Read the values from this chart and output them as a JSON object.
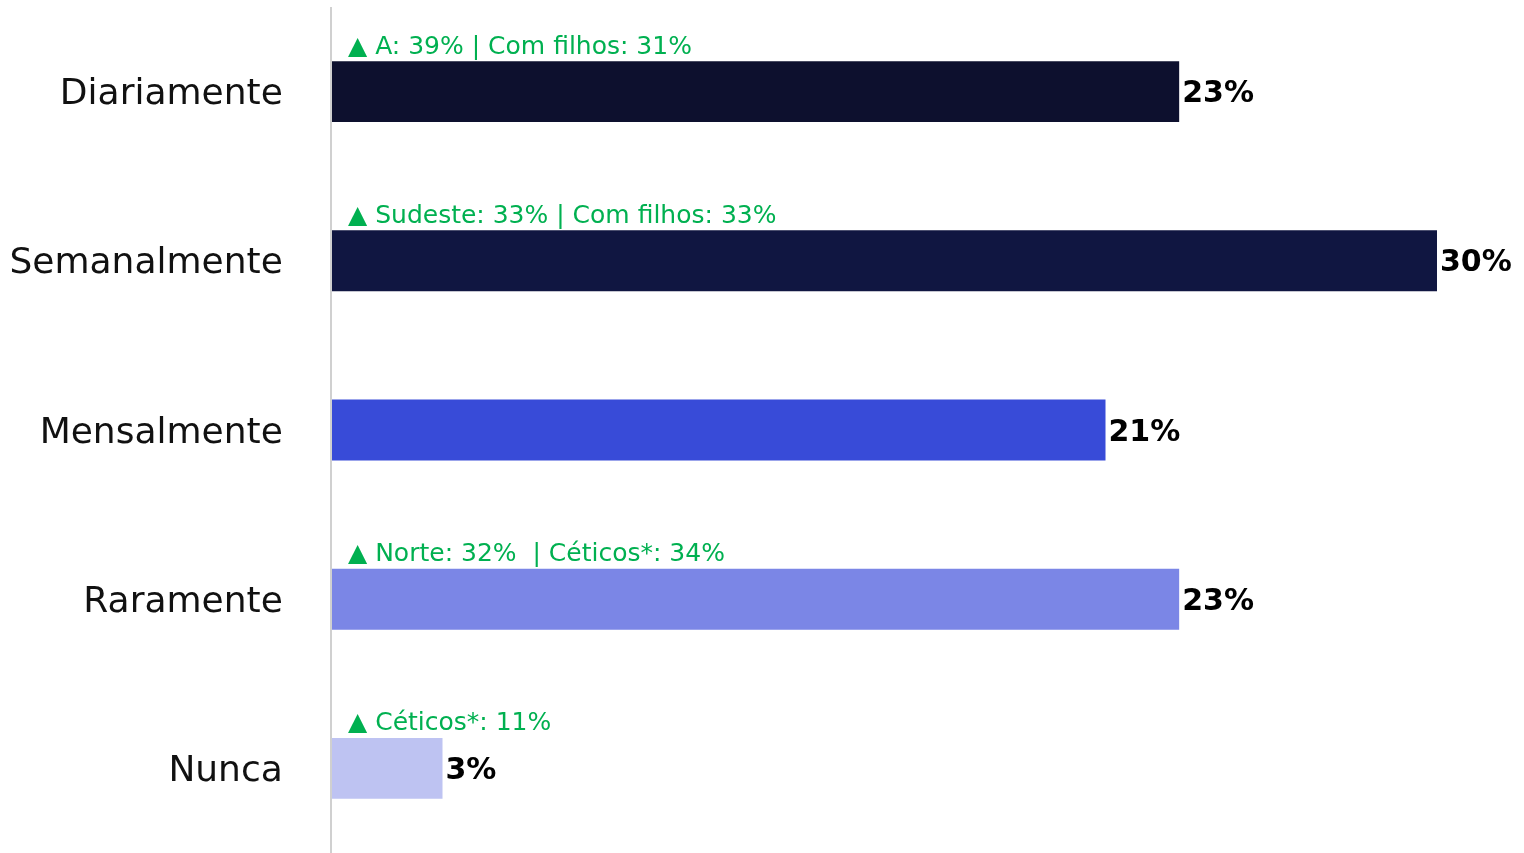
{
  "chart_data": {
    "type": "bar",
    "orientation": "horizontal",
    "categories": [
      "Diariamente",
      "Semanalmente",
      "Mensalmente",
      "Raramente",
      "Nunca"
    ],
    "values": [
      23,
      30,
      21,
      23,
      3
    ],
    "value_labels": [
      "23%",
      "30%",
      "21%",
      "23%",
      "3%"
    ],
    "colors": [
      "#0d102e",
      "#101641",
      "#384bd8",
      "#7b86e6",
      "#bec3f2"
    ],
    "annotations": [
      "▲ A: 39% | Com filhos: 31%",
      "▲ Sudeste: 33% | Com filhos: 33%",
      "▲ Norte: 32%  | Céticos*: 34%",
      "▲ Céticos*: 11%"
    ],
    "legend": false
  }
}
